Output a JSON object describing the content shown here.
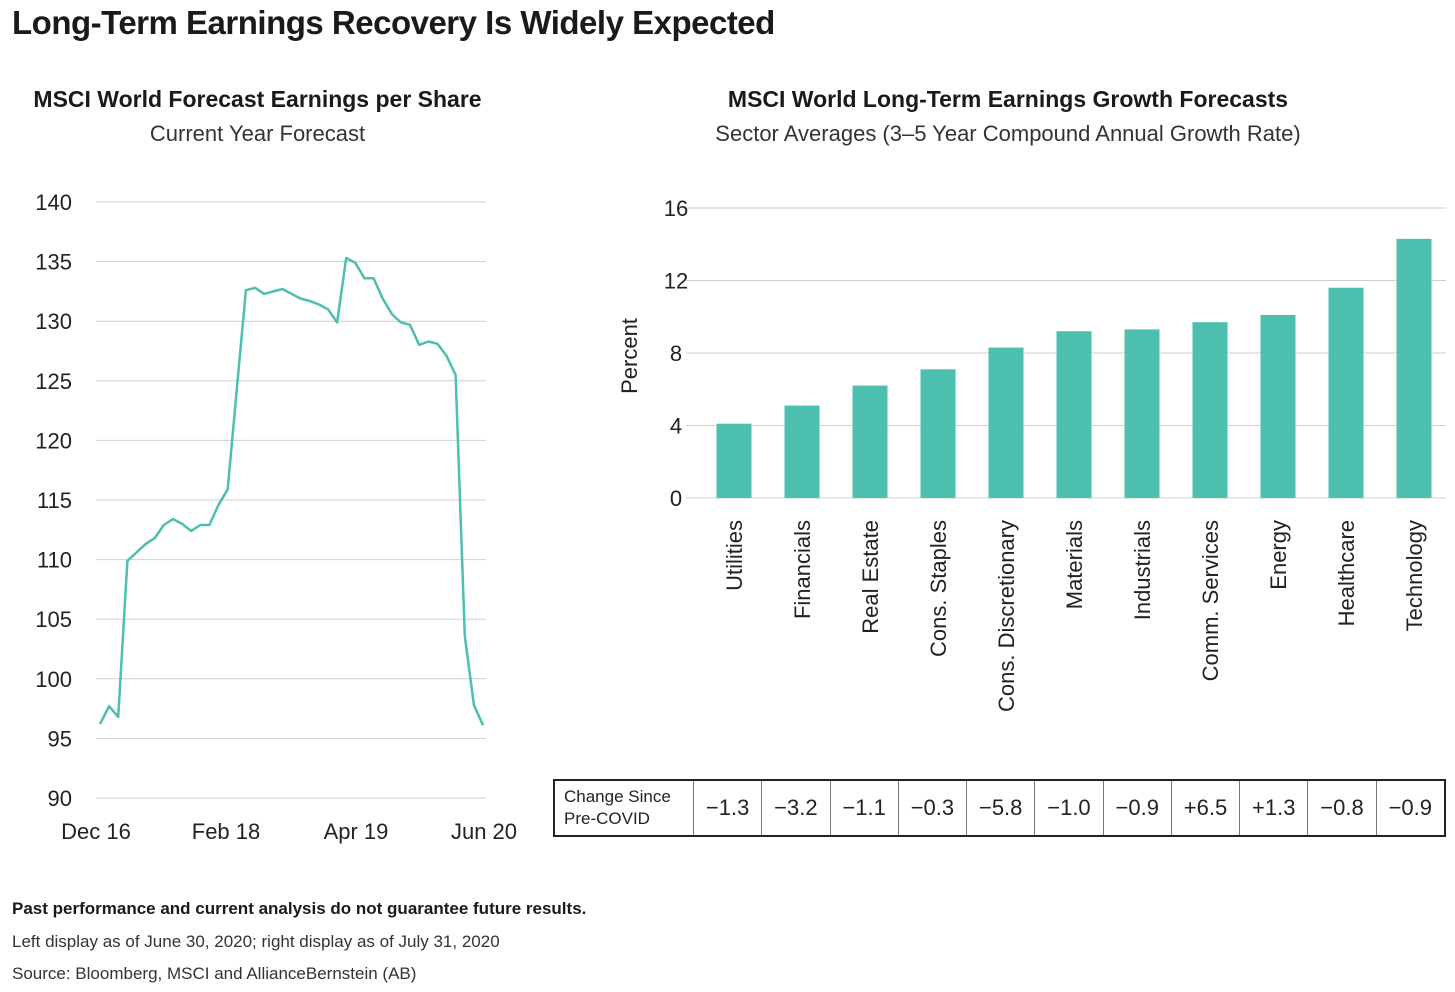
{
  "title": "Long-Term Earnings Recovery Is Widely Expected",
  "chart_data": [
    {
      "type": "line",
      "title": "MSCI World Forecast Earnings per Share",
      "subtitle": "Current Year Forecast",
      "x_ticks": [
        "Dec 16",
        "Feb 18",
        "Apr 19",
        "Jun 20"
      ],
      "y_ticks": [
        90,
        95,
        100,
        105,
        110,
        115,
        120,
        125,
        130,
        135,
        140
      ],
      "ylim": [
        90,
        140
      ],
      "grid": true,
      "color": "#4cbfae",
      "series": [
        {
          "x": [
            "2016-12",
            "2017-01",
            "2017-02",
            "2017-03",
            "2017-04",
            "2017-05",
            "2017-06",
            "2017-07",
            "2017-08",
            "2017-09",
            "2017-10",
            "2017-11",
            "2017-12",
            "2018-01",
            "2018-02",
            "2018-03",
            "2018-04",
            "2018-05",
            "2018-06",
            "2018-07",
            "2018-08",
            "2018-09",
            "2018-10",
            "2018-11",
            "2018-12",
            "2019-01",
            "2019-02",
            "2019-03",
            "2019-04",
            "2019-05",
            "2019-06",
            "2019-07",
            "2019-08",
            "2019-09",
            "2019-10",
            "2019-11",
            "2019-12",
            "2020-01",
            "2020-02",
            "2020-03",
            "2020-04",
            "2020-05",
            "2020-06"
          ],
          "values": [
            96.2,
            97.7,
            96.8,
            109.9,
            110.6,
            111.3,
            111.8,
            112.9,
            113.4,
            113.0,
            112.4,
            112.9,
            112.9,
            114.6,
            115.9,
            124.3,
            132.6,
            132.8,
            132.3,
            132.5,
            132.7,
            132.3,
            131.9,
            131.7,
            131.4,
            131.0,
            129.9,
            135.3,
            134.9,
            133.6,
            133.6,
            131.9,
            130.6,
            129.9,
            129.7,
            128.0,
            128.3,
            128.1,
            127.1,
            125.5,
            103.6,
            97.8,
            96.1
          ]
        }
      ]
    },
    {
      "type": "bar",
      "title": "MSCI World Long-Term Earnings Growth Forecasts",
      "subtitle": "Sector Averages (3–5 Year Compound Annual Growth Rate)",
      "ylabel": "Percent",
      "y_ticks": [
        0,
        4,
        8,
        12,
        16
      ],
      "ylim": [
        0,
        16
      ],
      "grid": true,
      "color": "#4cbfae",
      "categories": [
        "Utilities",
        "Financials",
        "Real Estate",
        "Cons. Staples",
        "Cons. Discretionary",
        "Materials",
        "Industrials",
        "Comm. Services",
        "Energy",
        "Healthcare",
        "Technology"
      ],
      "values": [
        4.1,
        5.1,
        6.2,
        7.1,
        8.3,
        9.2,
        9.3,
        9.7,
        10.1,
        11.6,
        14.3
      ],
      "table": {
        "header": "Change Since Pre-COVID",
        "values": [
          "−1.3",
          "−3.2",
          "−1.1",
          "−0.3",
          "−5.8",
          "−1.0",
          "−0.9",
          "+6.5",
          "+1.3",
          "−0.8",
          "−0.9"
        ]
      }
    }
  ],
  "notes": {
    "disclaimer": "Past performance and current analysis do not guarantee future results.",
    "as_of": "Left display as of June 30, 2020; right display as of July 31, 2020",
    "source": "Source: Bloomberg, MSCI and AllianceBernstein (AB)"
  }
}
